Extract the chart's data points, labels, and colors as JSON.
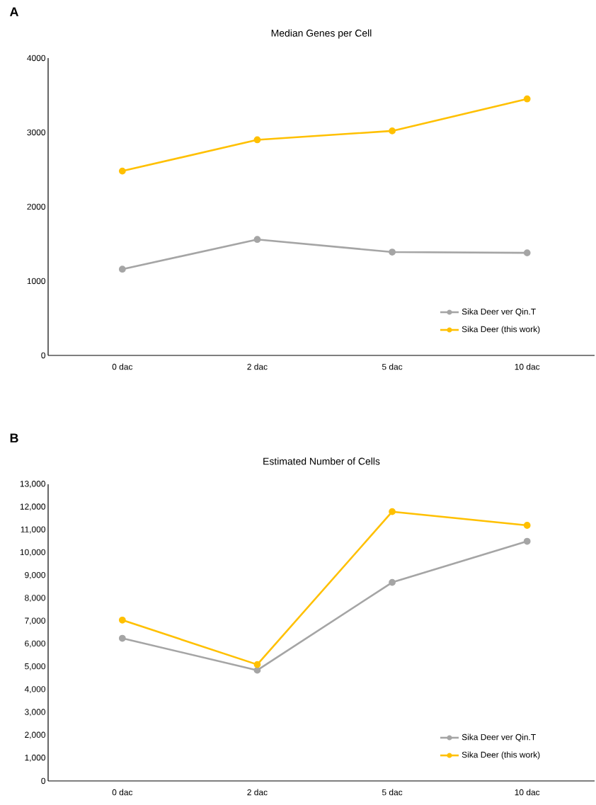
{
  "chart_data": [
    {
      "type": "line",
      "title": "Median Genes per Cell",
      "annotations": [
        "A"
      ],
      "categories": [
        "0 dac",
        "2 dac",
        "5 dac",
        "10 dac"
      ],
      "ylim": [
        0,
        4000
      ],
      "yticks": [
        0,
        1000,
        2000,
        3000,
        4000
      ],
      "legend": "bottom right",
      "marker": "circle",
      "line_style": "solid",
      "series": [
        {
          "name": "Sika Deer ver Qin.T",
          "color": "#a5a5a5",
          "values": [
            1160,
            1560,
            1390,
            1380
          ]
        },
        {
          "name": "Sika Deer (this work)",
          "color": "#ffc000",
          "values": [
            2480,
            2900,
            3020,
            3450
          ]
        }
      ]
    },
    {
      "type": "line",
      "title": "Estimated Number of Cells",
      "annotations": [
        "B"
      ],
      "categories": [
        "0 dac",
        "2 dac",
        "5 dac",
        "10 dac"
      ],
      "ylim": [
        0,
        13000
      ],
      "yticks": [
        {
          "value": 0,
          "label": "0"
        },
        {
          "value": 1000,
          "label": "1,000"
        },
        {
          "value": 2000,
          "label": "2,000"
        },
        {
          "value": 3000,
          "label": "3,000"
        },
        {
          "value": 4000,
          "label": "4,000"
        },
        {
          "value": 5000,
          "label": "5,000"
        },
        {
          "value": 6000,
          "label": "6,000"
        },
        {
          "value": 7000,
          "label": "7,000"
        },
        {
          "value": 8000,
          "label": "8,000"
        },
        {
          "value": 9000,
          "label": "9,000"
        },
        {
          "value": 10000,
          "label": "10,000"
        },
        {
          "value": 11000,
          "label": "11,000"
        },
        {
          "value": 12000,
          "label": "12,000"
        },
        {
          "value": 13000,
          "label": "13,000"
        }
      ],
      "legend": "bottom right",
      "marker": "circle",
      "line_style": "solid",
      "series": [
        {
          "name": "Sika Deer ver Qin.T",
          "color": "#a5a5a5",
          "values": [
            6250,
            4850,
            8700,
            10500
          ]
        },
        {
          "name": "Sika Deer (this work)",
          "color": "#ffc000",
          "values": [
            7050,
            5100,
            11800,
            11200
          ]
        }
      ]
    }
  ]
}
